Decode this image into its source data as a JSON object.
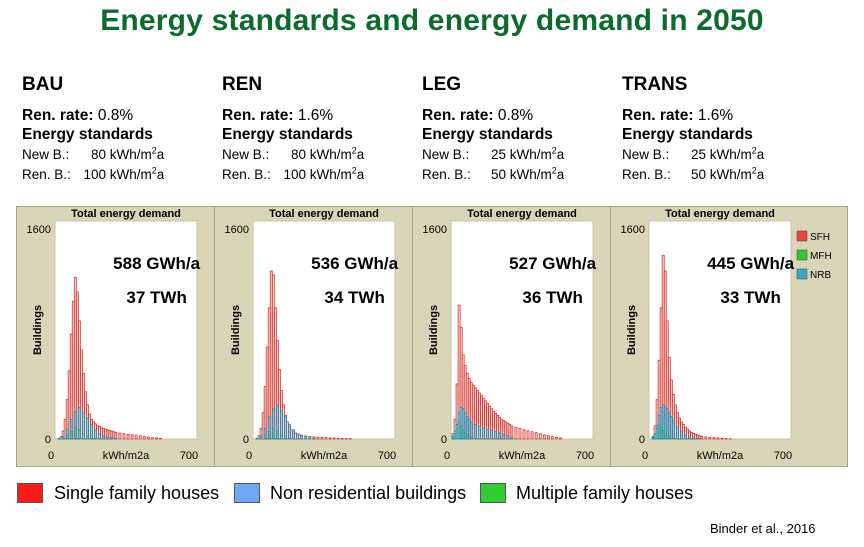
{
  "title": "Energy standards and energy demand in 2050",
  "credit": "Binder et al., 2016",
  "labels": {
    "rate_prefix": "Ren. rate",
    "energy_standards": "Energy standards",
    "new_b": "New B.:",
    "ren_b": "Ren. B.:",
    "unit_prefix": "kWh/m",
    "unit_sup": "2",
    "unit_suffix": "a"
  },
  "scenarios": [
    {
      "name": "BAU",
      "rate_colon": ":",
      "rate": "0.8%",
      "new_b": "80",
      "ren_b": "100"
    },
    {
      "name": "REN",
      "rate_colon": ":",
      "rate": "1.6%",
      "new_b": "80",
      "ren_b": "100"
    },
    {
      "name": "LEG",
      "rate_colon": ":",
      "rate": "0.8%",
      "new_b": "25",
      "ren_b": "50"
    },
    {
      "name": "TRANS",
      "rate_colon": ":",
      "rate": "1.6%",
      "new_b": "25",
      "ren_b": "50"
    }
  ],
  "legend": [
    {
      "label": "Single family houses",
      "color": "#ff1a1a"
    },
    {
      "label": "Non residential buildings",
      "color": "#6fa8f5"
    },
    {
      "label": "Multiple family houses",
      "color": "#33cc33"
    }
  ],
  "colors": {
    "sfh": "#e8453c",
    "mfh": "#2fc53a",
    "nrb": "#3aa6c8",
    "panel": "#d9d6b8"
  },
  "chart_data": [
    {
      "type": "bar",
      "title": "Total energy demand",
      "xlabel": "kWh/m2a",
      "ylabel": "Buildings",
      "xlim": [
        0,
        700
      ],
      "ylim": [
        0,
        1600
      ],
      "bin_width": 10,
      "annotation": [
        "588 GWh/a",
        "37 TWh"
      ],
      "legend_entries": [],
      "series": [
        {
          "name": "SFH",
          "x": [
            20,
            30,
            40,
            50,
            60,
            70,
            80,
            90,
            100,
            110,
            120,
            130,
            140,
            150,
            160,
            170,
            180,
            190,
            200,
            210,
            220,
            230,
            240,
            250,
            260,
            270,
            280,
            290,
            300,
            320,
            340,
            360,
            380,
            400,
            420,
            440,
            460,
            480,
            500,
            520
          ],
          "values": [
            5,
            20,
            60,
            150,
            300,
            520,
            800,
            1050,
            1230,
            1120,
            900,
            680,
            500,
            360,
            260,
            190,
            150,
            130,
            115,
            100,
            95,
            85,
            80,
            75,
            70,
            65,
            60,
            55,
            50,
            45,
            40,
            35,
            32,
            30,
            25,
            20,
            15,
            10,
            8,
            5
          ]
        },
        {
          "name": "MFH",
          "x": [
            40,
            60,
            80,
            100,
            120,
            140,
            160,
            180,
            200
          ],
          "values": [
            10,
            30,
            60,
            90,
            70,
            40,
            20,
            10,
            5
          ]
        },
        {
          "name": "NRB",
          "x": [
            20,
            40,
            60,
            80,
            100,
            120,
            140,
            160,
            180,
            200,
            220,
            240,
            260,
            280,
            300
          ],
          "values": [
            5,
            20,
            70,
            150,
            210,
            240,
            200,
            160,
            110,
            70,
            40,
            25,
            15,
            10,
            5
          ]
        }
      ]
    },
    {
      "type": "bar",
      "title": "Total energy demand",
      "xlabel": "kWh/m2a",
      "ylabel": "Buildings",
      "xlim": [
        0,
        700
      ],
      "ylim": [
        0,
        1600
      ],
      "bin_width": 10,
      "annotation": [
        "536 GWh/a",
        "34 TWh"
      ],
      "legend_entries": [],
      "series": [
        {
          "name": "SFH",
          "x": [
            20,
            30,
            40,
            50,
            60,
            70,
            80,
            90,
            100,
            110,
            120,
            130,
            140,
            150,
            160,
            170,
            180,
            190,
            200,
            210,
            220,
            230,
            240,
            260,
            280,
            300,
            320,
            340,
            360,
            380,
            400,
            420,
            440,
            460,
            480
          ],
          "values": [
            5,
            25,
            80,
            200,
            400,
            700,
            1000,
            1280,
            1250,
            1000,
            750,
            530,
            370,
            260,
            180,
            130,
            95,
            70,
            55,
            45,
            38,
            32,
            28,
            24,
            20,
            17,
            14,
            12,
            10,
            8,
            7,
            6,
            5,
            4,
            3
          ]
        },
        {
          "name": "MFH",
          "x": [
            40,
            60,
            80,
            100,
            120,
            140,
            160,
            180
          ],
          "values": [
            10,
            30,
            60,
            80,
            60,
            30,
            15,
            5
          ]
        },
        {
          "name": "NRB",
          "x": [
            20,
            40,
            60,
            80,
            100,
            120,
            140,
            160,
            180,
            200,
            220,
            240,
            260,
            280,
            300
          ],
          "values": [
            5,
            25,
            80,
            170,
            230,
            260,
            220,
            170,
            110,
            70,
            40,
            25,
            15,
            10,
            5
          ]
        }
      ]
    },
    {
      "type": "bar",
      "title": "Total energy demand",
      "xlabel": "kWh/m2a",
      "ylabel": "Buildings",
      "xlim": [
        0,
        700
      ],
      "ylim": [
        0,
        1600
      ],
      "bin_width": 10,
      "annotation": [
        "527 GWh/a",
        "36 TWh"
      ],
      "legend_entries": [],
      "series": [
        {
          "name": "SFH",
          "x": [
            10,
            20,
            30,
            40,
            50,
            60,
            70,
            80,
            90,
            100,
            110,
            120,
            130,
            140,
            150,
            160,
            170,
            180,
            190,
            200,
            210,
            220,
            230,
            240,
            250,
            260,
            270,
            280,
            290,
            300,
            320,
            340,
            360,
            380,
            400,
            420,
            440,
            460,
            480,
            500,
            520,
            540
          ],
          "values": [
            40,
            150,
            420,
            1020,
            850,
            640,
            560,
            500,
            460,
            430,
            410,
            390,
            370,
            350,
            330,
            310,
            290,
            270,
            250,
            230,
            210,
            195,
            180,
            165,
            150,
            140,
            130,
            120,
            110,
            100,
            90,
            80,
            70,
            62,
            55,
            48,
            40,
            32,
            25,
            18,
            12,
            8
          ]
        },
        {
          "name": "MFH",
          "x": [
            10,
            20,
            30,
            40,
            50,
            60,
            70,
            80,
            100,
            120
          ],
          "values": [
            20,
            60,
            110,
            130,
            100,
            70,
            45,
            30,
            15,
            5
          ]
        },
        {
          "name": "NRB",
          "x": [
            10,
            20,
            30,
            40,
            50,
            60,
            70,
            80,
            90,
            100,
            120,
            140,
            160,
            180,
            200,
            220,
            240,
            260,
            280,
            300
          ],
          "values": [
            10,
            40,
            110,
            200,
            240,
            230,
            200,
            170,
            150,
            130,
            110,
            95,
            85,
            75,
            65,
            55,
            45,
            35,
            25,
            15
          ]
        }
      ]
    },
    {
      "type": "bar",
      "title": "Total energy demand",
      "xlabel": "kWh/m2a",
      "ylabel": "Buildings",
      "xlim": [
        0,
        700
      ],
      "ylim": [
        0,
        1600
      ],
      "bin_width": 10,
      "annotation": [
        "445 GWh/a",
        "33 TWh"
      ],
      "legend_entries": [
        "SFH",
        "MFH",
        "NRB"
      ],
      "series": [
        {
          "name": "SFH",
          "x": [
            20,
            30,
            40,
            50,
            60,
            70,
            80,
            90,
            100,
            110,
            120,
            130,
            140,
            150,
            160,
            170,
            180,
            190,
            200,
            210,
            220,
            230,
            240,
            250,
            260,
            280,
            300,
            320,
            340,
            360,
            380,
            400
          ],
          "values": [
            20,
            100,
            300,
            600,
            1000,
            1400,
            1280,
            900,
            620,
            450,
            340,
            260,
            200,
            160,
            130,
            110,
            90,
            75,
            60,
            50,
            42,
            35,
            30,
            25,
            20,
            16,
            12,
            10,
            8,
            6,
            4,
            2
          ]
        },
        {
          "name": "MFH",
          "x": [
            20,
            30,
            40,
            50,
            60,
            70,
            80,
            100,
            120
          ],
          "values": [
            15,
            40,
            80,
            110,
            90,
            60,
            30,
            15,
            5
          ]
        },
        {
          "name": "NRB",
          "x": [
            20,
            30,
            40,
            50,
            60,
            70,
            80,
            90,
            100,
            110,
            120,
            140,
            160,
            180,
            200,
            220,
            240
          ],
          "values": [
            10,
            40,
            100,
            180,
            240,
            260,
            250,
            230,
            200,
            170,
            140,
            90,
            55,
            30,
            15,
            8,
            4
          ]
        }
      ]
    }
  ]
}
